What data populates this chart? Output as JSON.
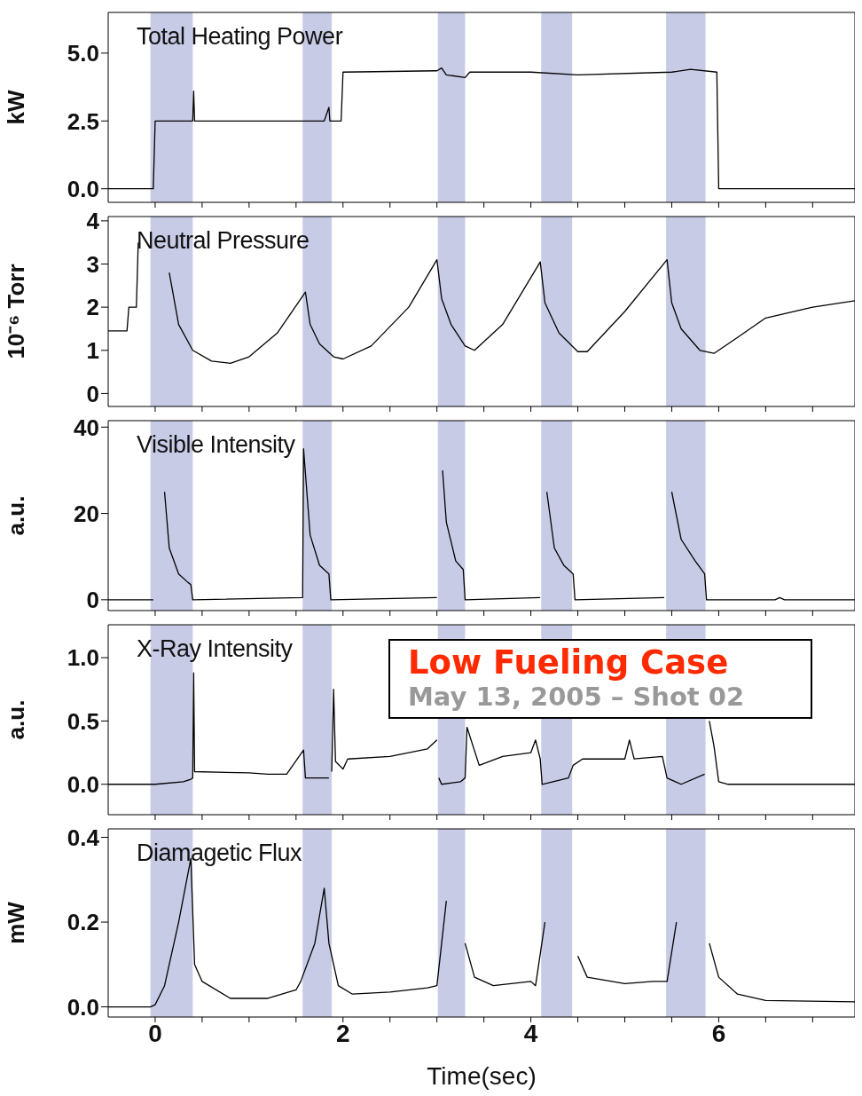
{
  "chart_data": [
    {
      "type": "line",
      "title": "Total Heating Power",
      "ylabel": "kW",
      "xlim": [
        -0.5,
        7.45
      ],
      "ylim": [
        -0.5,
        6.5
      ],
      "tick_labels": "y",
      "xticks": [
        0,
        {
          "value": 0.5,
          "label": null
        },
        {
          "value": 1,
          "label": null
        },
        {
          "value": 1.5,
          "label": null
        },
        2,
        {
          "value": 2.5,
          "label": null
        },
        {
          "value": 3,
          "label": null
        },
        {
          "value": 3.5,
          "label": null
        },
        4,
        {
          "value": 4.5,
          "label": null
        },
        {
          "value": 5,
          "label": null
        },
        {
          "value": 5.5,
          "label": null
        },
        6,
        {
          "value": 6.5,
          "label": null
        },
        {
          "value": 7,
          "label": null
        }
      ],
      "yticks": [
        {
          "value": 0,
          "label": "0.0"
        },
        {
          "value": 2.5,
          "label": "2.5"
        },
        {
          "value": 5,
          "label": "5.0"
        }
      ],
      "bands": [
        {
          "axis": "x",
          "from": -0.05,
          "to": 0.4,
          "color": "#c8cbe6"
        },
        {
          "axis": "x",
          "from": 1.57,
          "to": 1.88,
          "color": "#c8cbe6"
        },
        {
          "axis": "x",
          "from": 3.01,
          "to": 3.3,
          "color": "#c8cbe6"
        },
        {
          "axis": "x",
          "from": 4.11,
          "to": 4.44,
          "color": "#c8cbe6"
        },
        {
          "axis": "x",
          "from": 5.44,
          "to": 5.86,
          "color": "#c8cbe6"
        }
      ],
      "series": [
        {
          "color": "#000000",
          "x": [
            -0.5,
            -0.02,
            0.0,
            0.4,
            0.41,
            0.42,
            1.5,
            1.8,
            1.85,
            1.86,
            1.98,
            2.0,
            3.0,
            3.05,
            3.1,
            3.3,
            3.35,
            4.0,
            4.5,
            5.5,
            5.7,
            5.98,
            6.0,
            7.45
          ],
          "values": [
            0,
            0,
            2.5,
            2.5,
            3.6,
            2.5,
            2.5,
            2.5,
            3.0,
            2.5,
            2.5,
            4.3,
            4.35,
            4.45,
            4.2,
            4.1,
            4.3,
            4.3,
            4.2,
            4.3,
            4.4,
            4.3,
            0,
            0
          ]
        }
      ]
    },
    {
      "type": "line",
      "title": "Neutral Pressure",
      "ylabel": "10⁻⁶ Torr",
      "xlim": [
        -0.5,
        7.45
      ],
      "ylim": [
        -0.3,
        4.1
      ],
      "tick_labels": "y",
      "xticks": [
        0,
        {
          "value": 0.5,
          "label": null
        },
        {
          "value": 1,
          "label": null
        },
        {
          "value": 1.5,
          "label": null
        },
        2,
        {
          "value": 2.5,
          "label": null
        },
        {
          "value": 3,
          "label": null
        },
        {
          "value": 3.5,
          "label": null
        },
        4,
        {
          "value": 4.5,
          "label": null
        },
        {
          "value": 5,
          "label": null
        },
        {
          "value": 5.5,
          "label": null
        },
        6,
        {
          "value": 6.5,
          "label": null
        },
        {
          "value": 7,
          "label": null
        }
      ],
      "yticks": [
        0,
        1,
        2,
        3,
        4
      ],
      "bands": [
        {
          "axis": "x",
          "from": -0.05,
          "to": 0.4,
          "color": "#c8cbe6"
        },
        {
          "axis": "x",
          "from": 1.57,
          "to": 1.88,
          "color": "#c8cbe6"
        },
        {
          "axis": "x",
          "from": 3.01,
          "to": 3.3,
          "color": "#c8cbe6"
        },
        {
          "axis": "x",
          "from": 4.11,
          "to": 4.44,
          "color": "#c8cbe6"
        },
        {
          "axis": "x",
          "from": 5.44,
          "to": 5.86,
          "color": "#c8cbe6"
        }
      ],
      "series": [
        {
          "color": "#000000",
          "x": [
            -0.5,
            -0.3,
            -0.28,
            -0.2,
            -0.18,
            -0.1,
            0.1,
            0.15,
            0.25,
            0.4,
            0.6,
            0.8,
            1.0,
            1.3,
            1.6,
            1.65,
            1.75,
            1.9,
            2.0,
            2.3,
            2.7,
            3.0,
            3.05,
            3.15,
            3.3,
            3.4,
            3.7,
            4.1,
            4.15,
            4.3,
            4.5,
            4.6,
            5.0,
            5.45,
            5.5,
            5.6,
            5.8,
            5.95,
            6.2,
            6.5,
            7.0,
            7.45
          ],
          "values": [
            1.45,
            1.45,
            2.0,
            2.0,
            3.5,
            null,
            null,
            2.8,
            1.6,
            1.0,
            0.75,
            0.7,
            0.85,
            1.4,
            2.35,
            1.6,
            1.15,
            0.85,
            0.8,
            1.1,
            2.0,
            3.1,
            2.2,
            1.6,
            1.1,
            1.0,
            1.6,
            3.05,
            2.1,
            1.4,
            0.97,
            0.97,
            1.9,
            3.1,
            2.1,
            1.5,
            1.0,
            0.93,
            1.3,
            1.75,
            2.0,
            2.15
          ]
        }
      ]
    },
    {
      "type": "line",
      "title": "Visible Intensity",
      "ylabel": "a.u.",
      "xlim": [
        -0.5,
        7.45
      ],
      "ylim": [
        -2.5,
        41.5
      ],
      "tick_labels": "y",
      "xticks": [
        0,
        {
          "value": 0.5,
          "label": null
        },
        {
          "value": 1,
          "label": null
        },
        {
          "value": 1.5,
          "label": null
        },
        2,
        {
          "value": 2.5,
          "label": null
        },
        {
          "value": 3,
          "label": null
        },
        {
          "value": 3.5,
          "label": null
        },
        4,
        {
          "value": 4.5,
          "label": null
        },
        {
          "value": 5,
          "label": null
        },
        {
          "value": 5.5,
          "label": null
        },
        6,
        {
          "value": 6.5,
          "label": null
        },
        {
          "value": 7,
          "label": null
        }
      ],
      "yticks": [
        0,
        20,
        40
      ],
      "bands": [
        {
          "axis": "x",
          "from": -0.05,
          "to": 0.4,
          "color": "#c8cbe6"
        },
        {
          "axis": "x",
          "from": 1.57,
          "to": 1.88,
          "color": "#c8cbe6"
        },
        {
          "axis": "x",
          "from": 3.01,
          "to": 3.3,
          "color": "#c8cbe6"
        },
        {
          "axis": "x",
          "from": 4.11,
          "to": 4.44,
          "color": "#c8cbe6"
        },
        {
          "axis": "x",
          "from": 5.44,
          "to": 5.86,
          "color": "#c8cbe6"
        }
      ],
      "series": [
        {
          "color": "#000000",
          "x": [
            -0.5,
            -0.02,
            0.0,
            0.05,
            0.1,
            0.15,
            0.25,
            0.35,
            0.38,
            0.4,
            1.57,
            1.58,
            1.65,
            1.75,
            1.85,
            1.87,
            3.0,
            3.01,
            3.06,
            3.1,
            3.2,
            3.28,
            3.3,
            4.1,
            4.12,
            4.17,
            4.25,
            4.35,
            4.45,
            4.47,
            5.42,
            5.45,
            5.5,
            5.6,
            5.75,
            5.85,
            5.87,
            6.6,
            6.65,
            6.7,
            7.45
          ],
          "values": [
            0,
            0,
            null,
            null,
            25,
            12,
            6,
            4,
            3.5,
            0,
            0.5,
            35,
            15,
            8,
            6,
            0,
            0.5,
            null,
            30,
            18,
            9,
            7,
            0,
            0.5,
            null,
            25,
            12,
            8,
            6,
            0,
            0.5,
            null,
            25,
            14,
            9,
            6,
            0,
            0,
            0.5,
            0,
            0
          ]
        }
      ]
    },
    {
      "type": "line",
      "title": "X-Ray Intensity",
      "ylabel": "a.u.",
      "xlim": [
        -0.5,
        7.45
      ],
      "ylim": [
        -0.24,
        1.26
      ],
      "tick_labels": "y",
      "annotations": [
        "Low Fueling Case",
        "May 13, 2005 – Shot 02"
      ],
      "xticks": [
        0,
        {
          "value": 0.5,
          "label": null
        },
        {
          "value": 1,
          "label": null
        },
        {
          "value": 1.5,
          "label": null
        },
        2,
        {
          "value": 2.5,
          "label": null
        },
        {
          "value": 3,
          "label": null
        },
        {
          "value": 3.5,
          "label": null
        },
        4,
        {
          "value": 4.5,
          "label": null
        },
        {
          "value": 5,
          "label": null
        },
        {
          "value": 5.5,
          "label": null
        },
        6,
        {
          "value": 6.5,
          "label": null
        },
        {
          "value": 7,
          "label": null
        }
      ],
      "yticks": [
        {
          "value": 0,
          "label": "0.0"
        },
        {
          "value": 0.5,
          "label": "0.5"
        },
        {
          "value": 1,
          "label": "1.0"
        }
      ],
      "bands": [
        {
          "axis": "x",
          "from": -0.05,
          "to": 0.4,
          "color": "#c8cbe6"
        },
        {
          "axis": "x",
          "from": 1.57,
          "to": 1.88,
          "color": "#c8cbe6"
        },
        {
          "axis": "x",
          "from": 3.01,
          "to": 3.3,
          "color": "#c8cbe6"
        },
        {
          "axis": "x",
          "from": 4.11,
          "to": 4.44,
          "color": "#c8cbe6"
        },
        {
          "axis": "x",
          "from": 5.44,
          "to": 5.86,
          "color": "#c8cbe6"
        }
      ],
      "series": [
        {
          "color": "#000000",
          "x": [
            -0.5,
            0.0,
            0.3,
            0.38,
            0.4,
            0.41,
            0.42,
            1.0,
            1.2,
            1.4,
            1.58,
            1.6,
            1.85,
            1.86,
            1.88,
            1.9,
            1.92,
            2.0,
            2.05,
            2.5,
            2.9,
            3.0,
            3.01,
            3.02,
            3.05,
            3.25,
            3.3,
            3.32,
            3.45,
            3.7,
            4.0,
            4.05,
            4.1,
            4.12,
            4.4,
            4.45,
            4.55,
            5.0,
            5.05,
            5.1,
            5.4,
            5.45,
            5.6,
            5.85,
            5.87,
            5.9,
            5.95,
            6.0,
            6.1,
            7.45
          ],
          "values": [
            0,
            0,
            0.02,
            0.04,
            0.05,
            0.88,
            0.1,
            0.09,
            0.08,
            0.08,
            0.27,
            0.05,
            0.05,
            null,
            0.1,
            0.75,
            0.18,
            0.12,
            0.2,
            0.22,
            0.28,
            0.35,
            null,
            0.05,
            0.0,
            0.02,
            0.05,
            0.45,
            0.15,
            0.22,
            0.25,
            0.35,
            0.2,
            0.0,
            0.05,
            0.15,
            0.2,
            0.2,
            0.35,
            0.2,
            0.22,
            0.05,
            0.0,
            0.08,
            null,
            0.5,
            0.3,
            0.02,
            0.0,
            0.0
          ]
        }
      ]
    },
    {
      "type": "line",
      "title": "Diamagetic Flux",
      "ylabel": "mW",
      "xlabel": "Time(sec)",
      "xlim": [
        -0.5,
        7.45
      ],
      "ylim": [
        -0.024,
        0.42
      ],
      "xticks": [
        0,
        {
          "value": 0.5,
          "label": null
        },
        {
          "value": 1,
          "label": null
        },
        {
          "value": 1.5,
          "label": null
        },
        2,
        {
          "value": 2.5,
          "label": null
        },
        {
          "value": 3,
          "label": null
        },
        {
          "value": 3.5,
          "label": null
        },
        4,
        {
          "value": 4.5,
          "label": null
        },
        {
          "value": 5,
          "label": null
        },
        {
          "value": 5.5,
          "label": null
        },
        6,
        {
          "value": 6.5,
          "label": null
        },
        {
          "value": 7,
          "label": null
        }
      ],
      "yticks": [
        {
          "value": 0,
          "label": "0.0"
        },
        {
          "value": 0.2,
          "label": "0.2"
        },
        {
          "value": 0.4,
          "label": "0.4"
        }
      ],
      "bands": [
        {
          "axis": "x",
          "from": -0.05,
          "to": 0.4,
          "color": "#c8cbe6"
        },
        {
          "axis": "x",
          "from": 1.57,
          "to": 1.88,
          "color": "#c8cbe6"
        },
        {
          "axis": "x",
          "from": 3.01,
          "to": 3.3,
          "color": "#c8cbe6"
        },
        {
          "axis": "x",
          "from": 4.11,
          "to": 4.44,
          "color": "#c8cbe6"
        },
        {
          "axis": "x",
          "from": 5.44,
          "to": 5.86,
          "color": "#c8cbe6"
        }
      ],
      "series": [
        {
          "color": "#000000",
          "x": [
            -0.5,
            -0.05,
            0.0,
            0.1,
            0.25,
            0.38,
            0.42,
            0.5,
            0.8,
            1.2,
            1.5,
            1.55,
            1.7,
            1.8,
            1.85,
            1.95,
            2.1,
            2.5,
            2.9,
            3.0,
            3.1,
            3.2,
            3.3,
            3.4,
            3.6,
            4.0,
            4.05,
            4.15,
            4.3,
            4.4,
            4.5,
            4.6,
            5.0,
            5.3,
            5.45,
            5.55,
            5.7,
            5.8,
            5.9,
            6.0,
            6.2,
            6.5,
            7.45
          ],
          "values": [
            0.0,
            0.0,
            0.005,
            0.05,
            0.2,
            0.35,
            0.1,
            0.06,
            0.02,
            0.02,
            0.04,
            0.06,
            0.15,
            0.28,
            0.15,
            0.05,
            0.03,
            0.035,
            0.045,
            0.05,
            0.25,
            null,
            0.15,
            0.07,
            0.05,
            0.06,
            0.05,
            0.2,
            null,
            null,
            0.12,
            0.07,
            0.055,
            0.06,
            0.06,
            0.2,
            null,
            null,
            0.15,
            0.07,
            0.03,
            0.015,
            0.012
          ]
        }
      ]
    }
  ]
}
